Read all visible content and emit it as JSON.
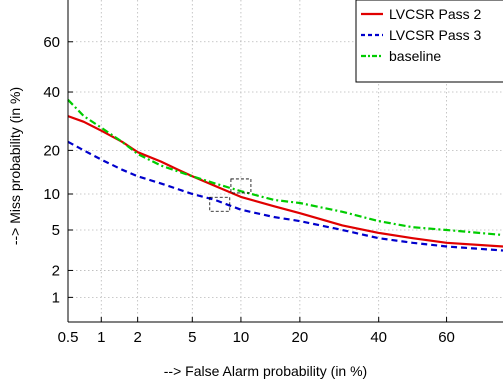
{
  "chart_data": {
    "type": "line",
    "title": "",
    "xlabel": "--> False Alarm probability (in %)",
    "ylabel": "--> Miss probability (in %)",
    "scale": "normal-deviate (DET)",
    "xlim": [
      0.5,
      75
    ],
    "ylim": [
      0.5,
      75
    ],
    "grid": true,
    "legend_position": "top-right",
    "x_ticks": [
      {
        "value": 0.5,
        "label": "0.5"
      },
      {
        "value": 1,
        "label": "1"
      },
      {
        "value": 2,
        "label": "2"
      },
      {
        "value": 5,
        "label": "5"
      },
      {
        "value": 10,
        "label": "10"
      },
      {
        "value": 20,
        "label": "20"
      },
      {
        "value": 40,
        "label": "40"
      },
      {
        "value": 60,
        "label": "60"
      }
    ],
    "y_ticks": [
      {
        "value": 1,
        "label": "1"
      },
      {
        "value": 2,
        "label": "2"
      },
      {
        "value": 5,
        "label": "5"
      },
      {
        "value": 10,
        "label": "10"
      },
      {
        "value": 20,
        "label": "20"
      },
      {
        "value": 40,
        "label": "40"
      },
      {
        "value": 60,
        "label": "60"
      }
    ],
    "series": [
      {
        "name": "LVCSR Pass 2",
        "color": "#e00000",
        "dash": "solid",
        "points": [
          [
            0.5,
            31
          ],
          [
            0.7,
            29
          ],
          [
            1.0,
            26
          ],
          [
            1.5,
            22.5
          ],
          [
            2.0,
            19.5
          ],
          [
            3.0,
            17
          ],
          [
            4.0,
            15
          ],
          [
            5.0,
            13.5
          ],
          [
            7.0,
            11.5
          ],
          [
            10.0,
            9.5
          ],
          [
            15.0,
            8
          ],
          [
            20.0,
            7
          ],
          [
            30.0,
            5.5
          ],
          [
            40.0,
            4.7
          ],
          [
            50.0,
            4.2
          ],
          [
            60.0,
            3.8
          ],
          [
            75.0,
            3.5
          ]
        ]
      },
      {
        "name": "LVCSR Pass 3",
        "color": "#0000cc",
        "dash": "dashed",
        "points": [
          [
            0.5,
            22.5
          ],
          [
            0.7,
            20
          ],
          [
            1.0,
            17.5
          ],
          [
            1.5,
            15
          ],
          [
            2.0,
            13.5
          ],
          [
            3.0,
            12
          ],
          [
            5.0,
            10
          ],
          [
            7.0,
            9
          ],
          [
            10.0,
            7.5
          ],
          [
            15.0,
            6.5
          ],
          [
            20.0,
            6
          ],
          [
            30.0,
            5
          ],
          [
            40.0,
            4.2
          ],
          [
            50.0,
            3.8
          ],
          [
            60.0,
            3.5
          ],
          [
            75.0,
            3.2
          ]
        ]
      },
      {
        "name": "baseline",
        "color": "#00cc00",
        "dash": "dashdot",
        "points": [
          [
            0.5,
            37
          ],
          [
            0.7,
            31
          ],
          [
            1.0,
            27
          ],
          [
            1.5,
            22.5
          ],
          [
            2.0,
            19
          ],
          [
            3.0,
            16
          ],
          [
            5.0,
            13.5
          ],
          [
            7.0,
            12
          ],
          [
            10.0,
            10.5
          ],
          [
            15.0,
            9
          ],
          [
            20.0,
            8.5
          ],
          [
            30.0,
            7.2
          ],
          [
            40.0,
            6
          ],
          [
            50.0,
            5.3
          ],
          [
            60.0,
            5
          ],
          [
            75.0,
            4.5
          ]
        ]
      }
    ],
    "annotations": [
      {
        "type": "dashed-box",
        "x": 7.5,
        "y": 8.3
      },
      {
        "type": "dashed-box",
        "x": 10,
        "y": 11.5
      }
    ]
  }
}
